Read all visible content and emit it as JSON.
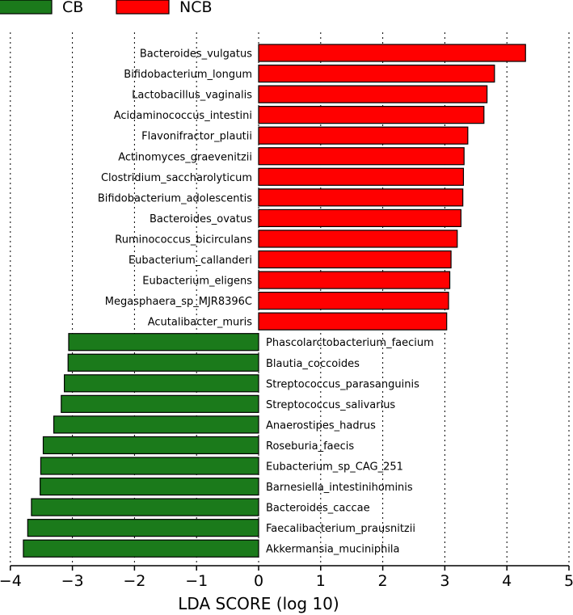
{
  "chart_data": {
    "type": "bar",
    "orientation": "horizontal",
    "title": "",
    "xlabel": "LDA SCORE (log 10)",
    "ylabel": "",
    "xlim": [
      -4,
      5
    ],
    "xticks": [
      -4,
      -3,
      -2,
      -1,
      0,
      1,
      2,
      3,
      4,
      5
    ],
    "xtick_labels": [
      "−4",
      "−3",
      "−2",
      "−1",
      "0",
      "1",
      "2",
      "3",
      "4",
      "5"
    ],
    "grid": "vertical dotted",
    "legend_placement": "top-left",
    "legend": [
      {
        "name": "CB",
        "color": "#1b7a1b"
      },
      {
        "name": "NCB",
        "color": "#ff0000"
      }
    ],
    "bars": [
      {
        "name": "Bacteroides_vulgatus",
        "value": 4.3,
        "group": "NCB"
      },
      {
        "name": "Bifidobacterium_longum",
        "value": 3.8,
        "group": "NCB"
      },
      {
        "name": "Lactobacillus_vaginalis",
        "value": 3.68,
        "group": "NCB"
      },
      {
        "name": "Acidaminococcus_intestini",
        "value": 3.63,
        "group": "NCB"
      },
      {
        "name": "Flavonifractor_plautii",
        "value": 3.37,
        "group": "NCB"
      },
      {
        "name": "Actinomyces_graevenitzii",
        "value": 3.31,
        "group": "NCB"
      },
      {
        "name": "Clostridium_saccharolyticum",
        "value": 3.3,
        "group": "NCB"
      },
      {
        "name": "Bifidobacterium_adolescentis",
        "value": 3.29,
        "group": "NCB"
      },
      {
        "name": "Bacteroides_ovatus",
        "value": 3.26,
        "group": "NCB"
      },
      {
        "name": "Ruminococcus_bicirculans",
        "value": 3.2,
        "group": "NCB"
      },
      {
        "name": "Eubacterium_callanderi",
        "value": 3.1,
        "group": "NCB"
      },
      {
        "name": "Eubacterium_eligens",
        "value": 3.08,
        "group": "NCB"
      },
      {
        "name": "Megasphaera_sp_MJR8396C",
        "value": 3.06,
        "group": "NCB"
      },
      {
        "name": "Acutalibacter_muris",
        "value": 3.03,
        "group": "NCB"
      },
      {
        "name": "Phascolarctobacterium_faecium",
        "value": -3.06,
        "group": "CB"
      },
      {
        "name": "Blautia_coccoides",
        "value": -3.07,
        "group": "CB"
      },
      {
        "name": "Streptococcus_parasanguinis",
        "value": -3.13,
        "group": "CB"
      },
      {
        "name": "Streptococcus_salivarius",
        "value": -3.18,
        "group": "CB"
      },
      {
        "name": "Anaerostipes_hadrus",
        "value": -3.3,
        "group": "CB"
      },
      {
        "name": "Roseburia_faecis",
        "value": -3.47,
        "group": "CB"
      },
      {
        "name": "Eubacterium_sp_CAG_251",
        "value": -3.51,
        "group": "CB"
      },
      {
        "name": "Barnesiella_intestinihominis",
        "value": -3.52,
        "group": "CB"
      },
      {
        "name": "Bacteroides_caccae",
        "value": -3.66,
        "group": "CB"
      },
      {
        "name": "Faecalibacterium_prausnitzii",
        "value": -3.72,
        "group": "CB"
      },
      {
        "name": "Akkermansia_muciniphila",
        "value": -3.79,
        "group": "CB"
      }
    ]
  }
}
